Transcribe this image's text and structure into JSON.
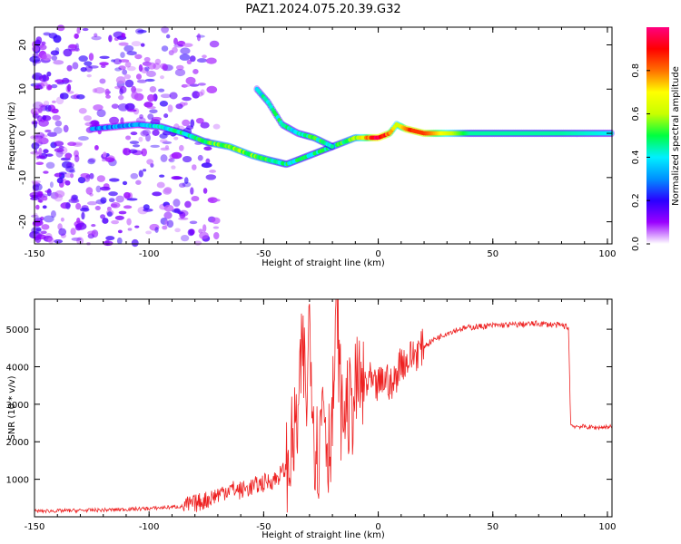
{
  "figure": {
    "title": "PAZ1.2024.075.20.39.G32"
  },
  "colorbar": {
    "label": "Normalized spectral amplitude",
    "ticks": [
      0.0,
      0.2,
      0.4,
      0.6,
      0.8
    ],
    "tick_labels": [
      "0.0",
      "0.2",
      "0.4",
      "0.6",
      "0.8"
    ],
    "range": [
      0,
      1
    ],
    "colormap": [
      "#ffffff",
      "#9a00ff",
      "#2a00ff",
      "#0090ff",
      "#00f0ff",
      "#00ff40",
      "#c8ff00",
      "#ffff00",
      "#ff7000",
      "#ff0000",
      "#ff0080"
    ]
  },
  "chart_data": [
    {
      "type": "heatmap",
      "title": "",
      "xlabel": "Height of straight line (km)",
      "ylabel": "Frequency (Hz)",
      "xlim": [
        -150,
        102
      ],
      "ylim": [
        -25,
        24
      ],
      "x_ticks": [
        -150,
        -100,
        -50,
        0,
        50,
        100
      ],
      "x_tick_labels": [
        "-150",
        "-100",
        "-50",
        "0",
        "50",
        "100"
      ],
      "y_ticks": [
        -20,
        -10,
        0,
        10,
        20
      ],
      "y_tick_labels": [
        "-20",
        "-10",
        "0",
        "10",
        "20"
      ],
      "ridge": {
        "x": [
          -125,
          -115,
          -105,
          -95,
          -85,
          -75,
          -65,
          -55,
          -48,
          -40,
          -30,
          -20,
          -10,
          0,
          5,
          8,
          12,
          20,
          40,
          60,
          80,
          102
        ],
        "frequency": [
          1,
          1.5,
          2,
          1.5,
          0,
          -2,
          -3,
          -5,
          -6,
          -7,
          -5,
          -3,
          -1,
          -1,
          0,
          2,
          1,
          0,
          0,
          0,
          0,
          0
        ],
        "amplitude": [
          0.3,
          0.3,
          0.35,
          0.4,
          0.45,
          0.5,
          0.55,
          0.55,
          0.5,
          0.45,
          0.45,
          0.45,
          0.55,
          0.95,
          0.8,
          0.6,
          0.85,
          0.85,
          0.45,
          0.45,
          0.45,
          0.4
        ]
      },
      "branch": {
        "x": [
          -53,
          -48,
          -42,
          -35,
          -28,
          -20
        ],
        "frequency": [
          10,
          7,
          2,
          0,
          -1,
          -3
        ],
        "amplitude": [
          0.4,
          0.45,
          0.45,
          0.4,
          0.5,
          0.45
        ]
      },
      "noise_region": {
        "x_range": [
          -150,
          -85
        ],
        "frequency_range": [
          -25,
          24
        ],
        "amplitude_range": [
          0.05,
          0.2
        ]
      }
    },
    {
      "type": "line",
      "title": "",
      "xlabel": "Height of straight line (km)",
      "ylabel": "SNR (10 * v/v)",
      "xlim": [
        -150,
        102
      ],
      "ylim": [
        0,
        5800
      ],
      "x_ticks": [
        -150,
        -100,
        -50,
        0,
        50,
        100
      ],
      "x_tick_labels": [
        "-150",
        "-100",
        "-50",
        "0",
        "50",
        "100"
      ],
      "y_ticks": [
        1000,
        2000,
        3000,
        4000,
        5000
      ],
      "y_tick_labels": [
        "1000",
        "2000",
        "3000",
        "4000",
        "5000"
      ],
      "color": "#ee2222",
      "series": [
        {
          "x": [
            -150,
            -120,
            -100,
            -85,
            -80,
            -75,
            -70,
            -65,
            -60,
            -55,
            -50,
            -45,
            -40,
            -37,
            -35,
            -33,
            -31,
            -30,
            -28,
            -26,
            -24,
            -22,
            -20,
            -18,
            -16,
            -14,
            -12,
            -10,
            -8,
            -6,
            -4,
            -2,
            0,
            2,
            4,
            6,
            8,
            10,
            12,
            15,
            20,
            25,
            30,
            35,
            40,
            50,
            60,
            70,
            80,
            83,
            84,
            85,
            90,
            95,
            102
          ],
          "y": [
            150,
            180,
            220,
            280,
            350,
            450,
            600,
            750,
            700,
            800,
            900,
            1000,
            1300,
            2000,
            2600,
            4500,
            3000,
            5700,
            2200,
            1600,
            3500,
            1800,
            2600,
            5600,
            2500,
            3000,
            2800,
            3300,
            3600,
            3200,
            3700,
            3400,
            3500,
            3600,
            3700,
            3400,
            3800,
            4200,
            4100,
            4300,
            4550,
            4750,
            4900,
            5000,
            5050,
            5100,
            5120,
            5150,
            5100,
            5050,
            2450,
            2420,
            2400,
            2380,
            2400
          ]
        }
      ]
    }
  ]
}
